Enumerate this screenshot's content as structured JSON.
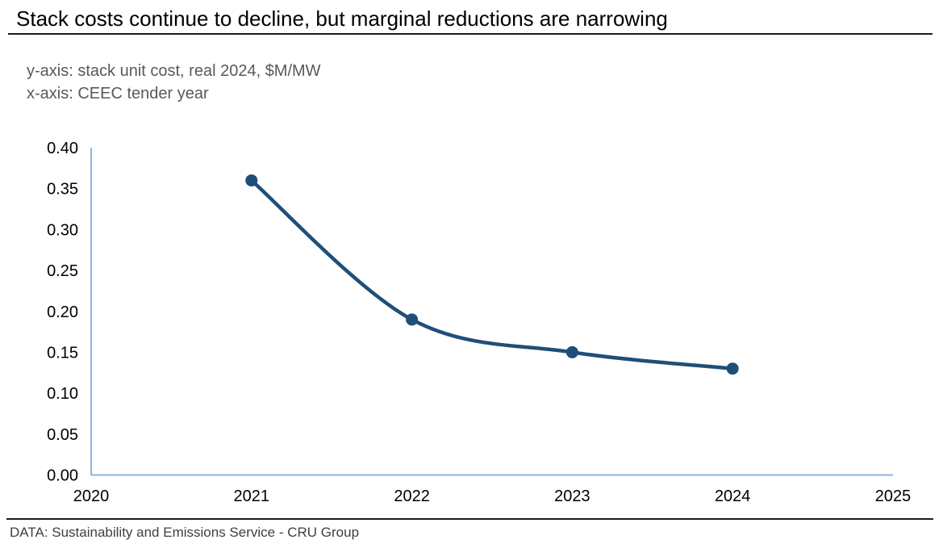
{
  "title": "Stack costs continue to decline, but marginal reductions are narrowing",
  "subtitle": {
    "line1": "y-axis: stack unit cost, real 2024, $M/MW",
    "line2": "x-axis: CEEC tender year"
  },
  "footer": "DATA: Sustainability and Emissions Service - CRU Group",
  "colors": {
    "line": "#1F4E79",
    "axis": "#8EB4E3",
    "title_text": "#000000",
    "subtitle_text": "#595959",
    "footer_text": "#404040",
    "tick_text": "#000000"
  },
  "chart_data": {
    "type": "line",
    "title": "Stack costs continue to decline, but marginal reductions are narrowing",
    "xlabel": "CEEC tender year",
    "ylabel": "stack unit cost, real 2024, $M/MW",
    "x": [
      2021,
      2022,
      2023,
      2024
    ],
    "values": [
      0.36,
      0.19,
      0.15,
      0.13
    ],
    "xlim": [
      2020,
      2025
    ],
    "ylim": [
      0,
      0.4
    ],
    "x_tick_labels": [
      "2020",
      "2021",
      "2022",
      "2023",
      "2024",
      "2025"
    ],
    "y_tick_labels": [
      "0.00",
      "0.05",
      "0.10",
      "0.15",
      "0.20",
      "0.25",
      "0.30",
      "0.35",
      "0.40"
    ],
    "grid": false,
    "legend": false,
    "smooth_line": true,
    "marker": "circle",
    "line_width": 4.5,
    "marker_radius": 7.5
  }
}
